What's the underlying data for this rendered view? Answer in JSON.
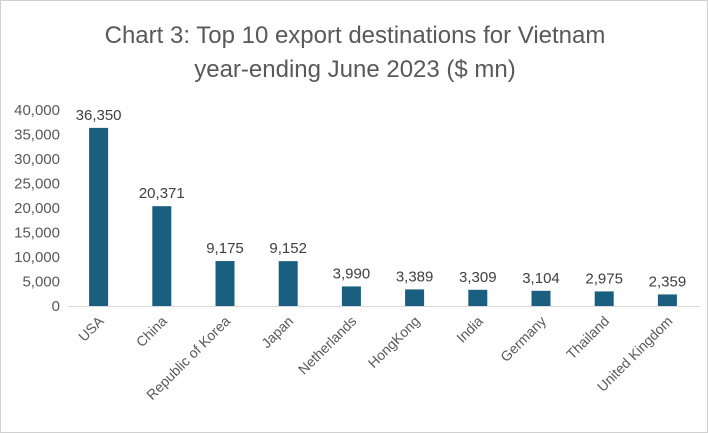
{
  "chart_data": {
    "type": "bar",
    "title_line1": "Chart 3: Top 10 export destinations for Vietnam",
    "title_line2": "year-ending June 2023 ($ mn)",
    "categories": [
      "USA",
      "China",
      "Republic of Korea",
      "Japan",
      "Netherlands",
      "HongKong",
      "India",
      "Germany",
      "Thailand",
      "United Kingdom"
    ],
    "values": [
      36350,
      20371,
      9175,
      9152,
      3990,
      3389,
      3309,
      3104,
      2975,
      2359
    ],
    "data_labels": [
      "36,350",
      "20,371",
      "9,175",
      "9,152",
      "3,990",
      "3,389",
      "3,309",
      "3,104",
      "2,975",
      "2,359"
    ],
    "yticks": [
      0,
      5000,
      10000,
      15000,
      20000,
      25000,
      30000,
      35000,
      40000
    ],
    "ytick_labels": [
      "0",
      "5,000",
      "10,000",
      "15,000",
      "20,000",
      "25,000",
      "30,000",
      "35,000",
      "40,000"
    ],
    "ylim": [
      0,
      40000
    ],
    "grid": false,
    "bar_color": "#1a5f80",
    "xlabel": "",
    "ylabel": ""
  }
}
